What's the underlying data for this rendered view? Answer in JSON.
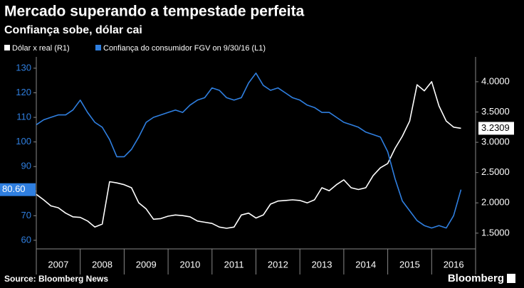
{
  "chart_data": {
    "type": "line",
    "title": "Mercado superando a tempestade perfeita",
    "subtitle": "Confiança sobe, dólar cai",
    "source": "Source: Bloomberg News",
    "brand": "Bloomberg",
    "categories": [
      "2007",
      "2008",
      "2009",
      "2010",
      "2011",
      "2012",
      "2013",
      "2014",
      "2015",
      "2016"
    ],
    "xlim": [
      2007,
      2017
    ],
    "x": [
      2007,
      2007.167,
      2007.333,
      2007.5,
      2007.667,
      2007.833,
      2008,
      2008.167,
      2008.333,
      2008.5,
      2008.667,
      2008.833,
      2009,
      2009.167,
      2009.333,
      2009.5,
      2009.667,
      2009.833,
      2010,
      2010.167,
      2010.333,
      2010.5,
      2010.667,
      2010.833,
      2011,
      2011.167,
      2011.333,
      2011.5,
      2011.667,
      2011.833,
      2012,
      2012.167,
      2012.333,
      2012.5,
      2012.667,
      2012.833,
      2013,
      2013.167,
      2013.333,
      2013.5,
      2013.667,
      2013.833,
      2014,
      2014.167,
      2014.333,
      2014.5,
      2014.667,
      2014.833,
      2015,
      2015.167,
      2015.333,
      2015.5,
      2015.667,
      2015.833,
      2016,
      2016.167,
      2016.333,
      2016.5,
      2016.667
    ],
    "ylim": [
      56.5,
      134.6
    ],
    "yticks": [
      60,
      70,
      80,
      90,
      100,
      110,
      120,
      130
    ],
    "y2lim": [
      1.24,
      4.41
    ],
    "y2ticks": [
      {
        "value": 1.5,
        "label": "1.5000"
      },
      {
        "value": 2,
        "label": "2.0000"
      },
      {
        "value": 2.5,
        "label": "2.5000"
      },
      {
        "value": 3,
        "label": "3.0000"
      },
      {
        "value": 3.5,
        "label": "3.5000"
      },
      {
        "value": 4,
        "label": "4.0000"
      }
    ],
    "grid": false,
    "series": [
      {
        "name": "Dólar x real (R1)",
        "color": "#ffffff",
        "axis": "y2",
        "values": [
          2.14,
          2.05,
          1.95,
          1.92,
          1.83,
          1.77,
          1.76,
          1.7,
          1.6,
          1.65,
          2.35,
          2.33,
          2.3,
          2.25,
          2.0,
          1.9,
          1.73,
          1.74,
          1.78,
          1.8,
          1.79,
          1.77,
          1.7,
          1.68,
          1.66,
          1.6,
          1.58,
          1.6,
          1.8,
          1.83,
          1.75,
          1.8,
          1.98,
          2.03,
          2.04,
          2.05,
          2.04,
          2.0,
          2.05,
          2.25,
          2.2,
          2.3,
          2.38,
          2.25,
          2.22,
          2.25,
          2.45,
          2.58,
          2.65,
          2.9,
          3.1,
          3.35,
          3.95,
          3.85,
          4.0,
          3.6,
          3.35,
          3.25,
          3.2309
        ],
        "value_labels": [
          null,
          null,
          null,
          null,
          null,
          null,
          null,
          null,
          null,
          null,
          null,
          null,
          null,
          null,
          null,
          null,
          null,
          null,
          null,
          null,
          null,
          null,
          null,
          null,
          null,
          null,
          null,
          null,
          null,
          null,
          null,
          null,
          null,
          null,
          null,
          null,
          null,
          null,
          null,
          null,
          null,
          null,
          null,
          null,
          null,
          null,
          null,
          null,
          null,
          null,
          null,
          null,
          null,
          null,
          null,
          null,
          null,
          null,
          "3.2309"
        ]
      },
      {
        "name": "Confiança do consumidor FGV on 9/30/16 (L1)",
        "color": "#2f7fe0",
        "axis": "y",
        "values": [
          107,
          109,
          110,
          111,
          111,
          113,
          117,
          112,
          108,
          106,
          101,
          94,
          94,
          97,
          102,
          108,
          110,
          111,
          112,
          113,
          112,
          115,
          117,
          118,
          122,
          121,
          118,
          117,
          118,
          124,
          128,
          123,
          121,
          122,
          120,
          118,
          117,
          115,
          114,
          112,
          112,
          110,
          108,
          107,
          106,
          104,
          103,
          102,
          96,
          85,
          76,
          72,
          68,
          66,
          65,
          66,
          65,
          70,
          80.6
        ],
        "value_labels": [
          null,
          null,
          null,
          null,
          null,
          null,
          null,
          null,
          null,
          null,
          null,
          null,
          null,
          null,
          null,
          null,
          null,
          null,
          null,
          null,
          null,
          null,
          null,
          null,
          null,
          null,
          null,
          null,
          null,
          null,
          null,
          null,
          null,
          null,
          null,
          null,
          null,
          null,
          null,
          null,
          null,
          null,
          null,
          null,
          null,
          null,
          null,
          null,
          null,
          null,
          null,
          null,
          null,
          null,
          null,
          null,
          null,
          null,
          "80.60"
        ]
      }
    ]
  }
}
